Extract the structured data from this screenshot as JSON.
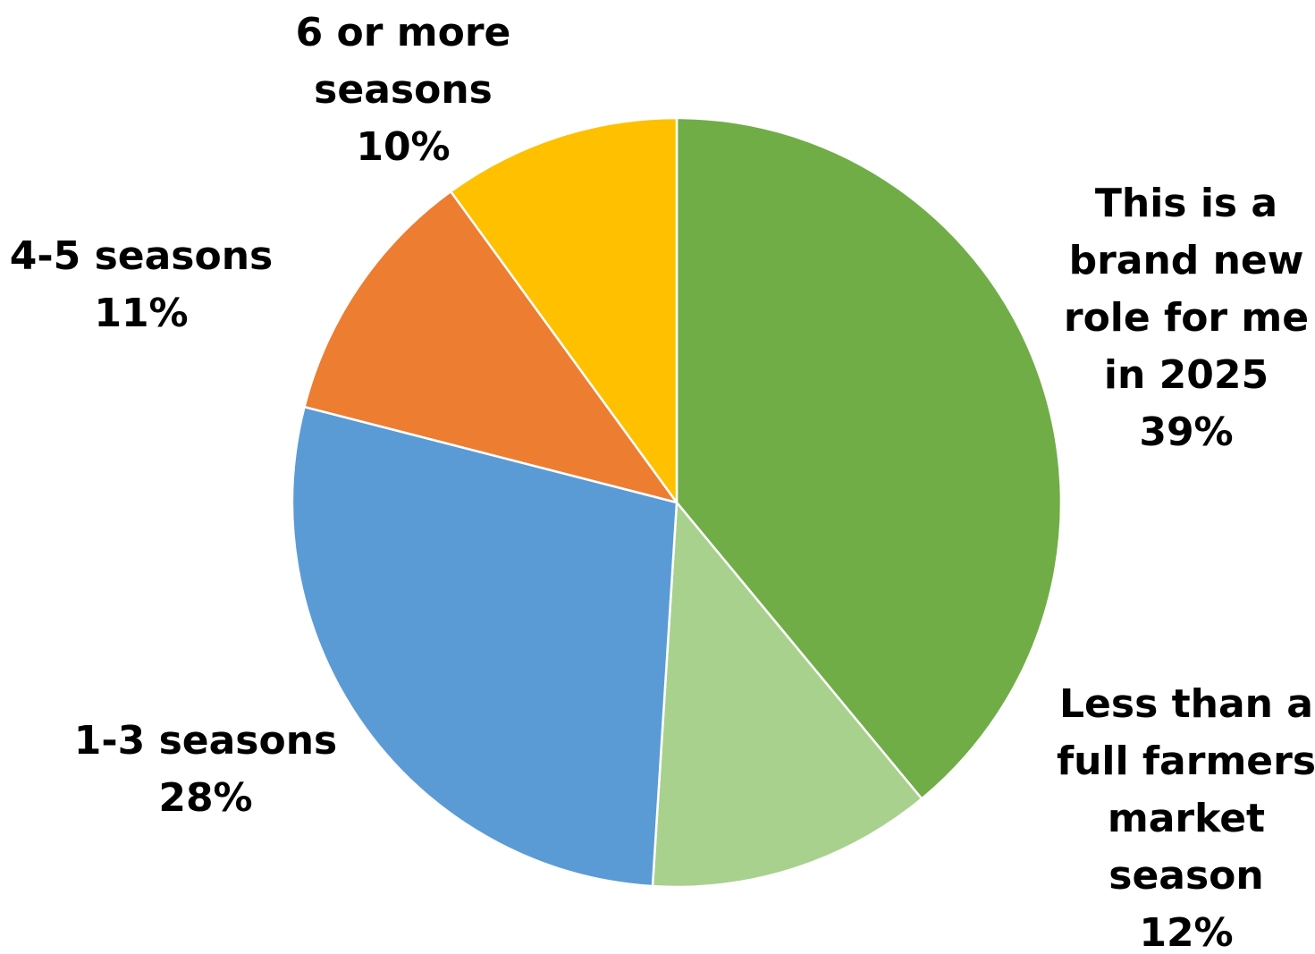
{
  "chart_data": {
    "type": "pie",
    "start_angle_deg": 0,
    "direction": "clockwise",
    "slices": [
      {
        "label_lines": [
          "This is a",
          "brand new",
          "role for me",
          "in 2025"
        ],
        "pct_label": "39%",
        "value": 39,
        "color": "#70AD47"
      },
      {
        "label_lines": [
          "Less than a",
          "full farmers",
          "market",
          "season"
        ],
        "pct_label": "12%",
        "value": 12,
        "color": "#A9D18E"
      },
      {
        "label_lines": [
          "1-3 seasons"
        ],
        "pct_label": "28%",
        "value": 28,
        "color": "#5B9BD5"
      },
      {
        "label_lines": [
          "4-5 seasons"
        ],
        "pct_label": "11%",
        "value": 11,
        "color": "#ED7D31"
      },
      {
        "label_lines": [
          "6 or more",
          "seasons"
        ],
        "pct_label": "10%",
        "value": 10,
        "color": "#FFC000"
      }
    ]
  }
}
